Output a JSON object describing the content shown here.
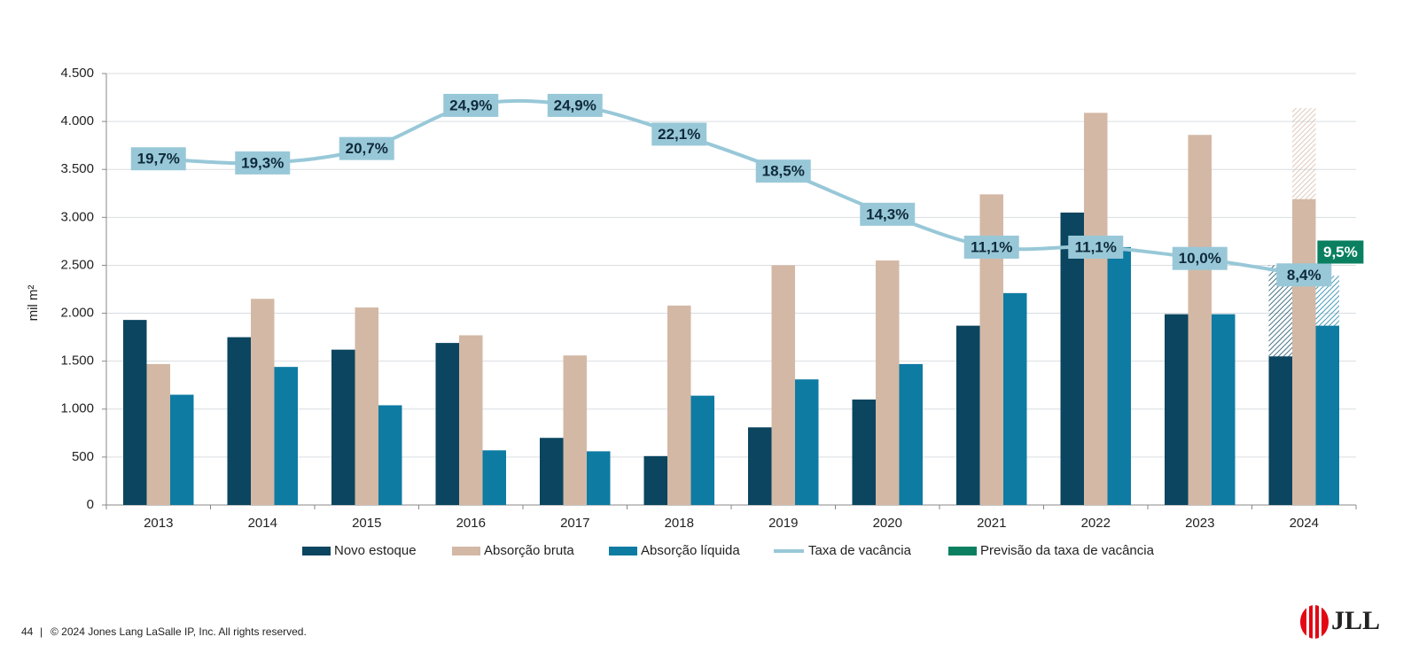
{
  "chart_data": {
    "type": "bar",
    "categories": [
      "2013",
      "2014",
      "2015",
      "2016",
      "2017",
      "2018",
      "2019",
      "2020",
      "2021",
      "2022",
      "2023",
      "2024"
    ],
    "y_label": "mil m²",
    "ylim": [
      0,
      4500
    ],
    "yticks": [
      {
        "value": 0,
        "label": "0"
      },
      {
        "value": 500,
        "label": "500"
      },
      {
        "value": 1000,
        "label": "1.000"
      },
      {
        "value": 1500,
        "label": "1.500"
      },
      {
        "value": 2000,
        "label": "2.000"
      },
      {
        "value": 2500,
        "label": "2.500"
      },
      {
        "value": 3000,
        "label": "3.000"
      },
      {
        "value": 3500,
        "label": "3.500"
      },
      {
        "value": 4000,
        "label": "4.000"
      },
      {
        "value": 4500,
        "label": "4.500"
      }
    ],
    "grid": true,
    "y2lim": [
      -14,
      28
    ],
    "series": [
      {
        "name": "Novo estoque",
        "color": "#0b4560",
        "values": [
          1930,
          1750,
          1620,
          1690,
          700,
          510,
          810,
          1100,
          1870,
          3050,
          1990,
          1550
        ],
        "forecast": [
          null,
          null,
          null,
          null,
          null,
          null,
          null,
          null,
          null,
          null,
          null,
          2500
        ]
      },
      {
        "name": "Absorção bruta",
        "color": "#d3b8a5",
        "values": [
          1470,
          2150,
          2060,
          1770,
          1560,
          2080,
          2500,
          2550,
          3240,
          4090,
          3860,
          3190
        ],
        "forecast": [
          null,
          null,
          null,
          null,
          null,
          null,
          null,
          null,
          null,
          null,
          null,
          4140
        ]
      },
      {
        "name": "Absorção líquida",
        "color": "#0e7ba3",
        "values": [
          1150,
          1440,
          1040,
          570,
          560,
          1140,
          1310,
          1470,
          2210,
          2690,
          1990,
          1870
        ],
        "forecast": [
          null,
          null,
          null,
          null,
          null,
          null,
          null,
          null,
          null,
          null,
          null,
          2390
        ]
      },
      {
        "name": "Taxa de vacância",
        "type": "line",
        "axis": "y2",
        "color": "#98c8d8",
        "values": [
          19.7,
          19.3,
          20.7,
          24.9,
          24.9,
          22.1,
          18.5,
          14.3,
          11.1,
          11.1,
          10.0,
          8.4
        ],
        "value_labels": [
          "19,7%",
          "19,3%",
          "20,7%",
          "24,9%",
          "24,9%",
          "22,1%",
          "18,5%",
          "14,3%",
          "11,1%",
          "11,1%",
          "10,0%",
          "8,4%"
        ]
      },
      {
        "name": "Previsão da taxa de vacância",
        "type": "point",
        "axis": "y2",
        "color": "#0a8060",
        "values": [
          null,
          null,
          null,
          null,
          null,
          null,
          null,
          null,
          null,
          null,
          null,
          9.5
        ],
        "value_labels": [
          null,
          null,
          null,
          null,
          null,
          null,
          null,
          null,
          null,
          null,
          null,
          "9,5%"
        ]
      }
    ]
  },
  "footer": {
    "page": "44",
    "separator": "|",
    "copyright": "© 2024 Jones Lang LaSalle IP, Inc. All rights reserved.",
    "logo": "JLL"
  }
}
